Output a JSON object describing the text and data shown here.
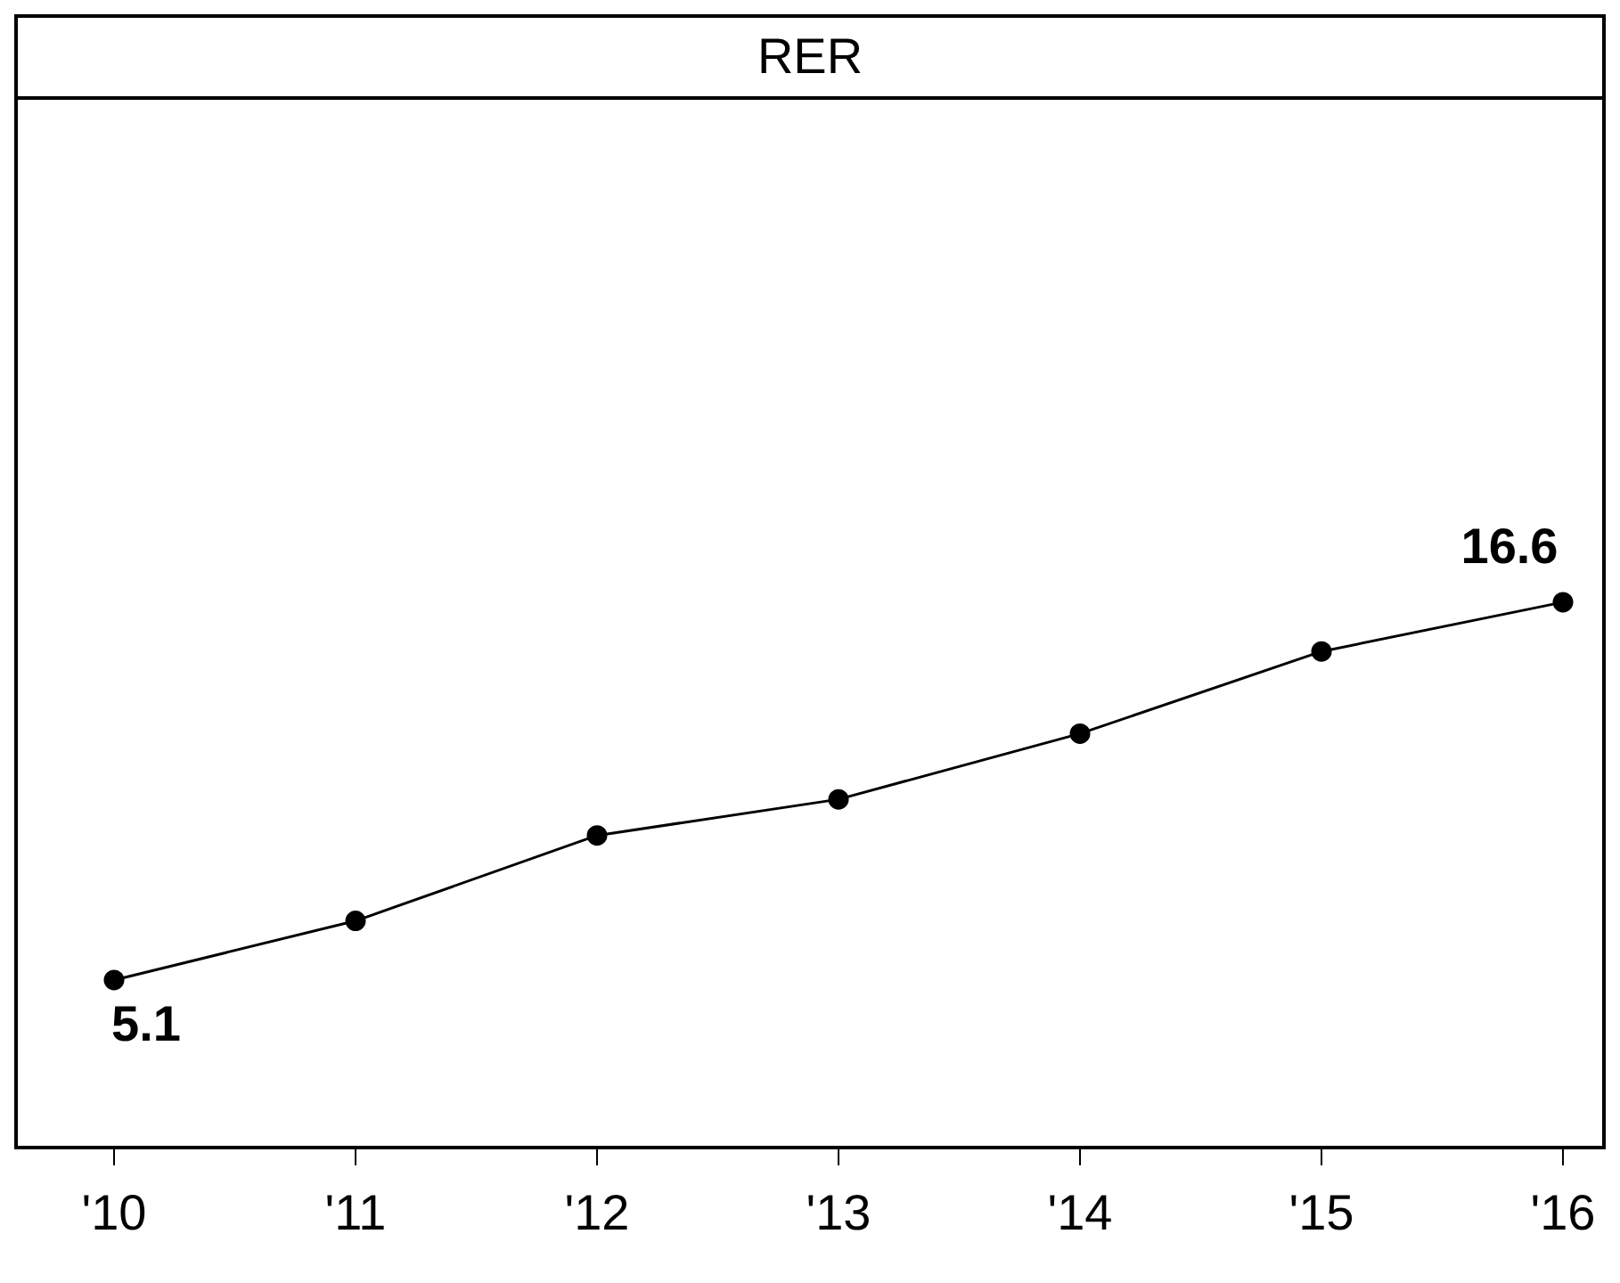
{
  "chart_data": {
    "type": "line",
    "title": "RER",
    "categories": [
      "'10",
      "'11",
      "'12",
      "'13",
      "'14",
      "'15",
      "'16"
    ],
    "series": [
      {
        "color": "#000000",
        "values": [
          5.1,
          6.9,
          9.5,
          10.6,
          12.6,
          15.1,
          16.6
        ],
        "value_labels": [
          "5.1",
          null,
          null,
          null,
          null,
          null,
          "16.6"
        ]
      }
    ],
    "ylim": [
      0,
      32
    ],
    "tick_labels": "x",
    "marker": "circle",
    "line_style": "solid"
  }
}
